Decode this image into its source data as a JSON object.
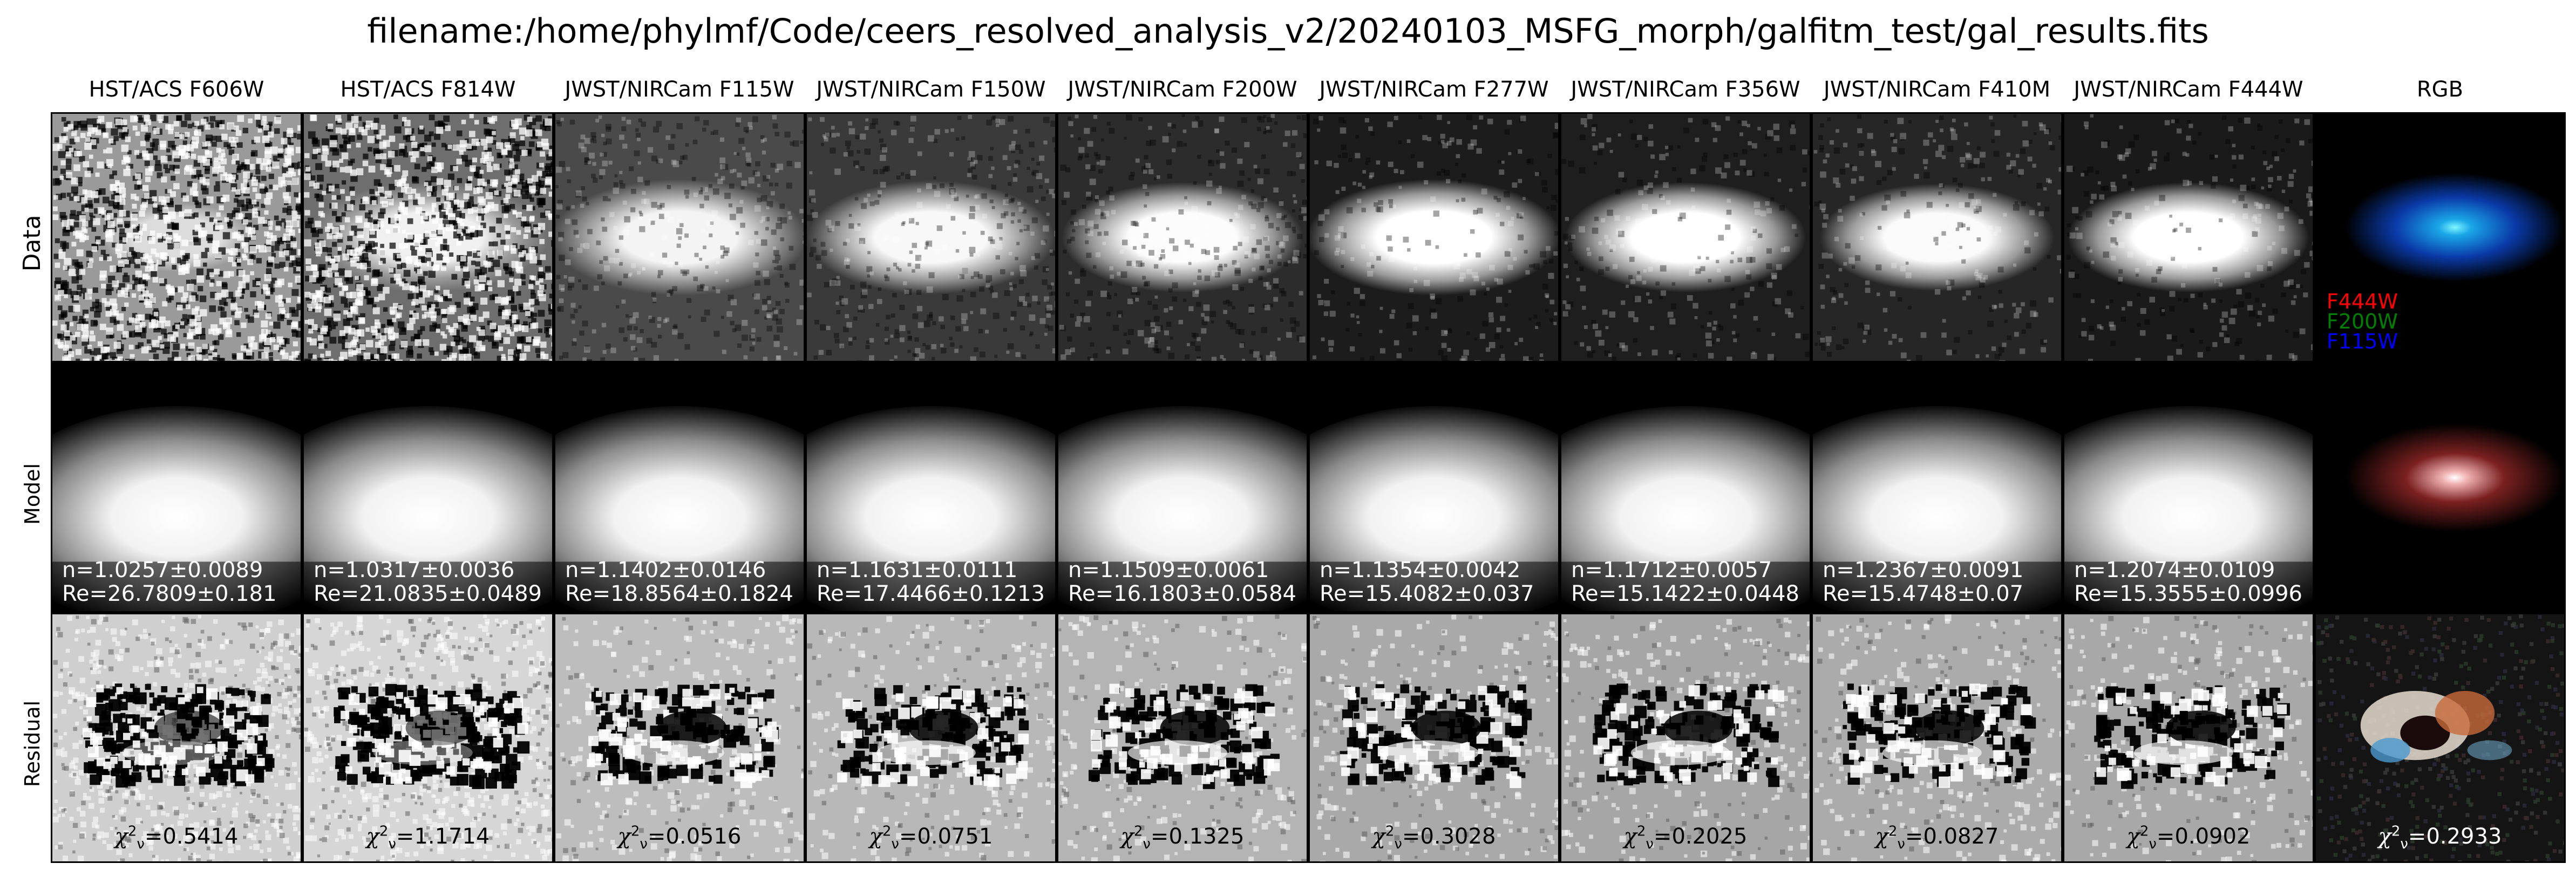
{
  "title": "filename:/home/phylmf/Code/ceers_resolved_analysis_v2/20240103_MSFG_morph/galfitm_test/gal_results.fits",
  "row_labels": {
    "data": "Data",
    "model": "Model",
    "residual": "Residual"
  },
  "columns": [
    {
      "label": "HST/ACS F606W",
      "n": "n=1.0257±0.0089",
      "re": "Re=26.7809±0.181",
      "chi2": "=0.5414"
    },
    {
      "label": "HST/ACS F814W",
      "n": "n=1.0317±0.0036",
      "re": "Re=21.0835±0.0489",
      "chi2": "=1.1714"
    },
    {
      "label": "JWST/NIRCam F115W",
      "n": "n=1.1402±0.0146",
      "re": "Re=18.8564±0.1824",
      "chi2": "=0.0516"
    },
    {
      "label": "JWST/NIRCam F150W",
      "n": "n=1.1631±0.0111",
      "re": "Re=17.4466±0.1213",
      "chi2": "=0.0751"
    },
    {
      "label": "JWST/NIRCam F200W",
      "n": "n=1.1509±0.0061",
      "re": "Re=16.1803±0.0584",
      "chi2": "=0.1325"
    },
    {
      "label": "JWST/NIRCam F277W",
      "n": "n=1.1354±0.0042",
      "re": "Re=15.4082±0.037",
      "chi2": "=0.3028"
    },
    {
      "label": "JWST/NIRCam F356W",
      "n": "n=1.1712±0.0057",
      "re": "Re=15.1422±0.0448",
      "chi2": "=0.2025"
    },
    {
      "label": "JWST/NIRCam F410M",
      "n": "n=1.2367±0.0091",
      "re": "Re=15.4748±0.07",
      "chi2": "=0.0827"
    },
    {
      "label": "JWST/NIRCam F444W",
      "n": "n=1.2074±0.0109",
      "re": "Re=15.3555±0.0996",
      "chi2": "=0.0902"
    }
  ],
  "rgb": {
    "label": "RGB",
    "legend": [
      {
        "text": "F444W",
        "color": "#ff0000"
      },
      {
        "text": "F200W",
        "color": "#008000"
      },
      {
        "text": "F115W",
        "color": "#0000ff"
      }
    ],
    "chi2": "=0.2933"
  },
  "chi2_symbol": {
    "base": "χ",
    "sup": "2",
    "sub": "ν"
  },
  "colors": {
    "background": "#ffffff",
    "panel_border": "#000000",
    "fit_text": "#ffffff",
    "residual_text": "#000000",
    "rgb_residual_text": "#ffffff"
  }
}
